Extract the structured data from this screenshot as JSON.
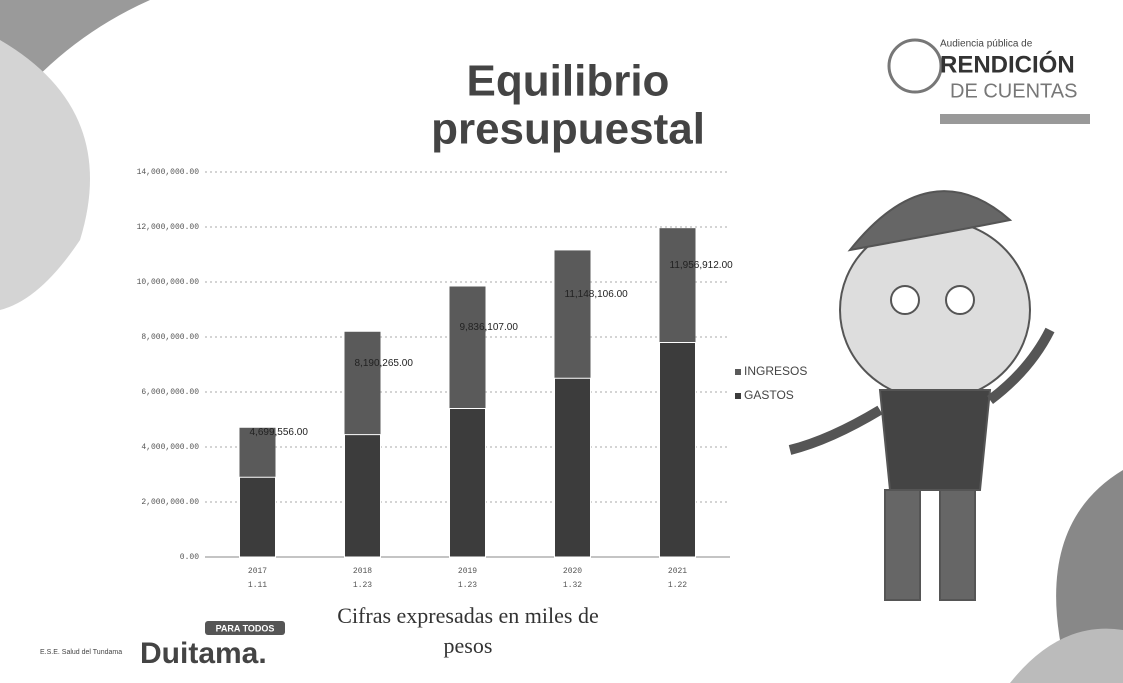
{
  "header": {
    "subtitle": "Audiencia pública de",
    "brand_line1": "RENDICIÓN",
    "brand_line2": "DE CUENTAS"
  },
  "chart_data": {
    "type": "bar",
    "title": "Equilibrio presupuestal",
    "categories": [
      "2017",
      "2018",
      "2019",
      "2020",
      "2021"
    ],
    "sublabels": [
      "1.11",
      "1.23",
      "1.23",
      "1.32",
      "1.22"
    ],
    "series": [
      {
        "name": "INGRESOS",
        "color": "#5a5a5a",
        "values": [
          4699556,
          8190265,
          9836107,
          11148106,
          11956912
        ],
        "value_labels": [
          "4,699,556.00",
          "8,190,265.00",
          "9,836,107.00",
          "11,148,106.00",
          "11,956,912.00"
        ]
      },
      {
        "name": "GASTOS",
        "color": "#3c3c3c",
        "values": [
          2900000,
          4450000,
          5400000,
          6500000,
          7800000
        ]
      }
    ],
    "ylim": [
      0,
      14000000
    ],
    "yticks": [
      {
        "value": 0,
        "label": "0.00"
      },
      {
        "value": 2000000,
        "label": "2,000,000.00"
      },
      {
        "value": 4000000,
        "label": "4,000,000.00"
      },
      {
        "value": 6000000,
        "label": "6,000,000.00"
      },
      {
        "value": 8000000,
        "label": "8,000,000.00"
      },
      {
        "value": 10000000,
        "label": "10,000,000.00"
      },
      {
        "value": 12000000,
        "label": "12,000,000.00"
      },
      {
        "value": 14000000,
        "label": "14,000,000.00"
      }
    ],
    "grid": true,
    "legend": "right",
    "note": "Cifras expresadas en miles de pesos"
  },
  "footer": {
    "city": "Duitama.",
    "tag": "PARA TODOS",
    "entity": "E.S.E. Salud del Tundama"
  }
}
